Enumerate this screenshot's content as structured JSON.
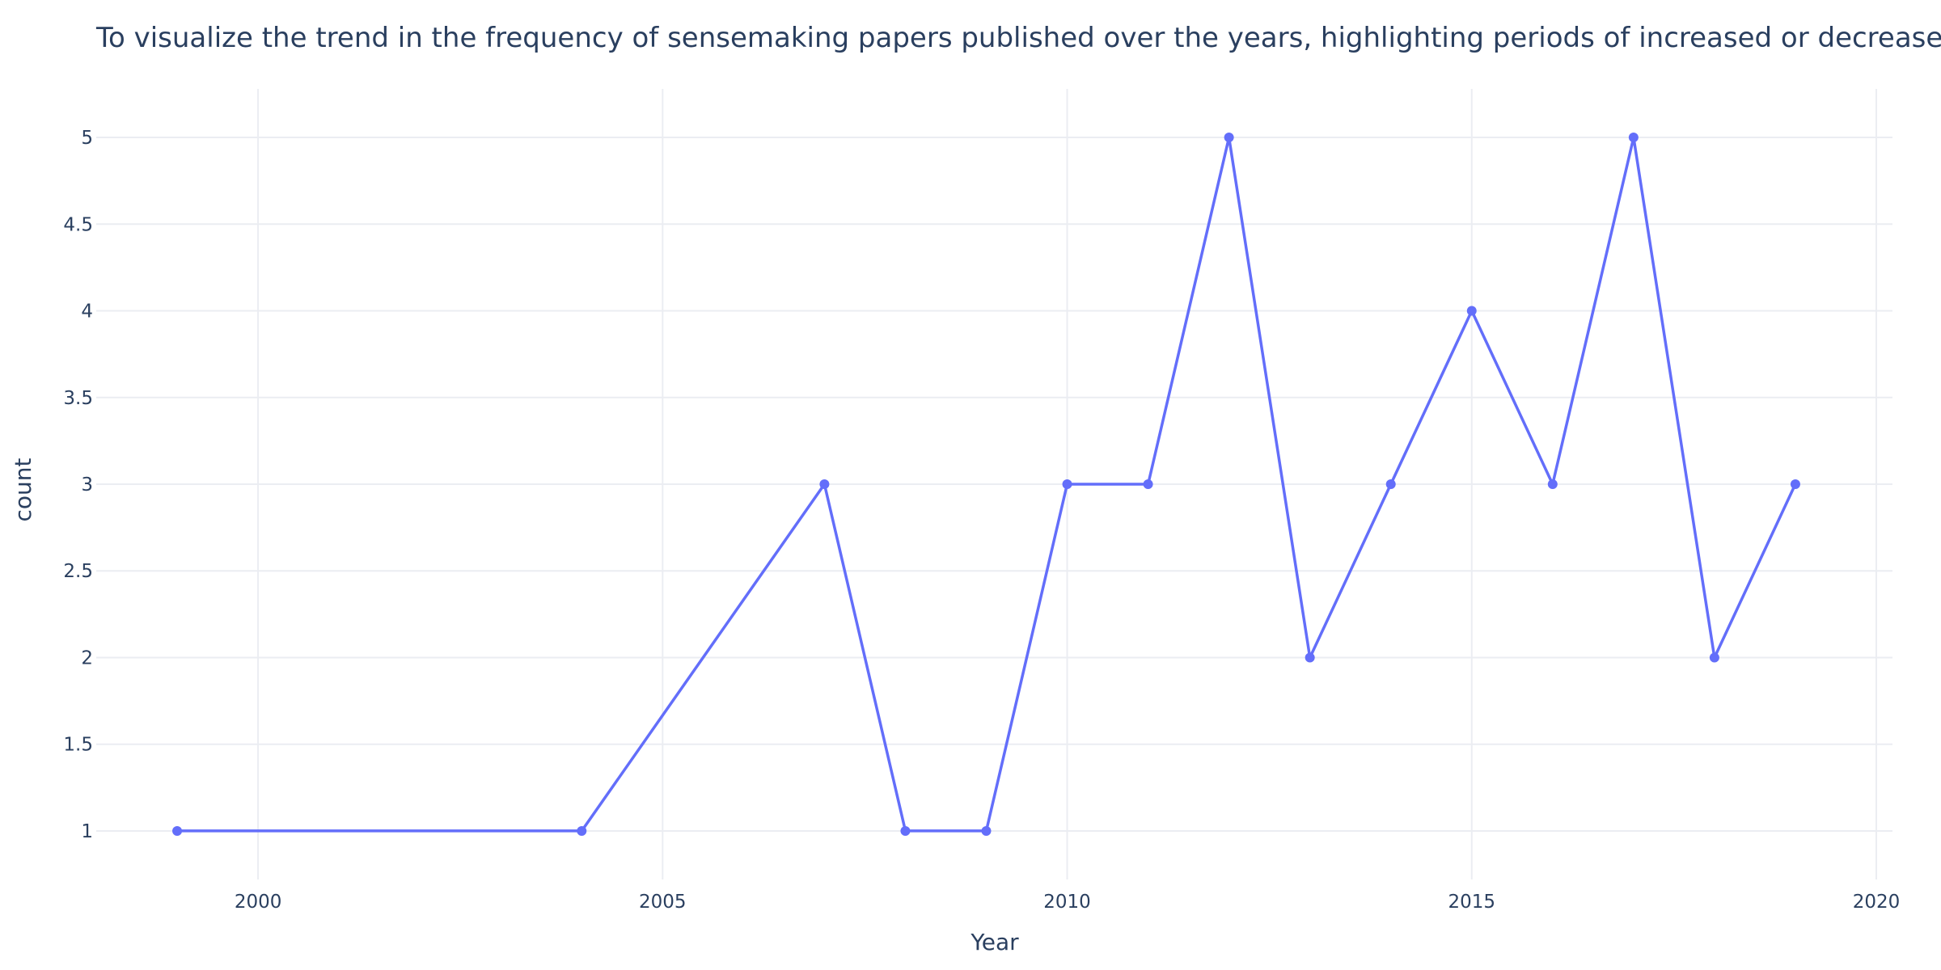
{
  "chart_data": {
    "type": "line",
    "title": "To visualize the trend in the frequency of sensemaking papers published over the years, highlighting periods of increased or decreased research activity",
    "xlabel": "Year",
    "ylabel": "count",
    "x": [
      1999,
      2004,
      2007,
      2008,
      2009,
      2010,
      2011,
      2012,
      2013,
      2014,
      2015,
      2016,
      2017,
      2018,
      2019
    ],
    "series": [
      {
        "values": [
          1,
          1,
          3,
          1,
          1,
          3,
          3,
          5,
          2,
          3,
          4,
          3,
          5,
          2,
          3
        ]
      }
    ],
    "xlim": [
      1998,
      2020.2
    ],
    "ylim": [
      0.72,
      5.28
    ],
    "xticks": [
      2000,
      2005,
      2010,
      2015,
      2020
    ],
    "xtick_labels": [
      "2000",
      "2005",
      "2010",
      "2015",
      "2020"
    ],
    "yticks": [
      1,
      1.5,
      2,
      2.5,
      3,
      3.5,
      4,
      4.5,
      5
    ],
    "ytick_labels": [
      "1",
      "1.5",
      "2",
      "2.5",
      "3",
      "3.5",
      "4",
      "4.5",
      "5"
    ],
    "grid": true,
    "legend": "none",
    "colors": {
      "line": "#636efa",
      "grid": "#ebedf2",
      "text": "#2a3f5f",
      "background": "#ffffff"
    }
  }
}
